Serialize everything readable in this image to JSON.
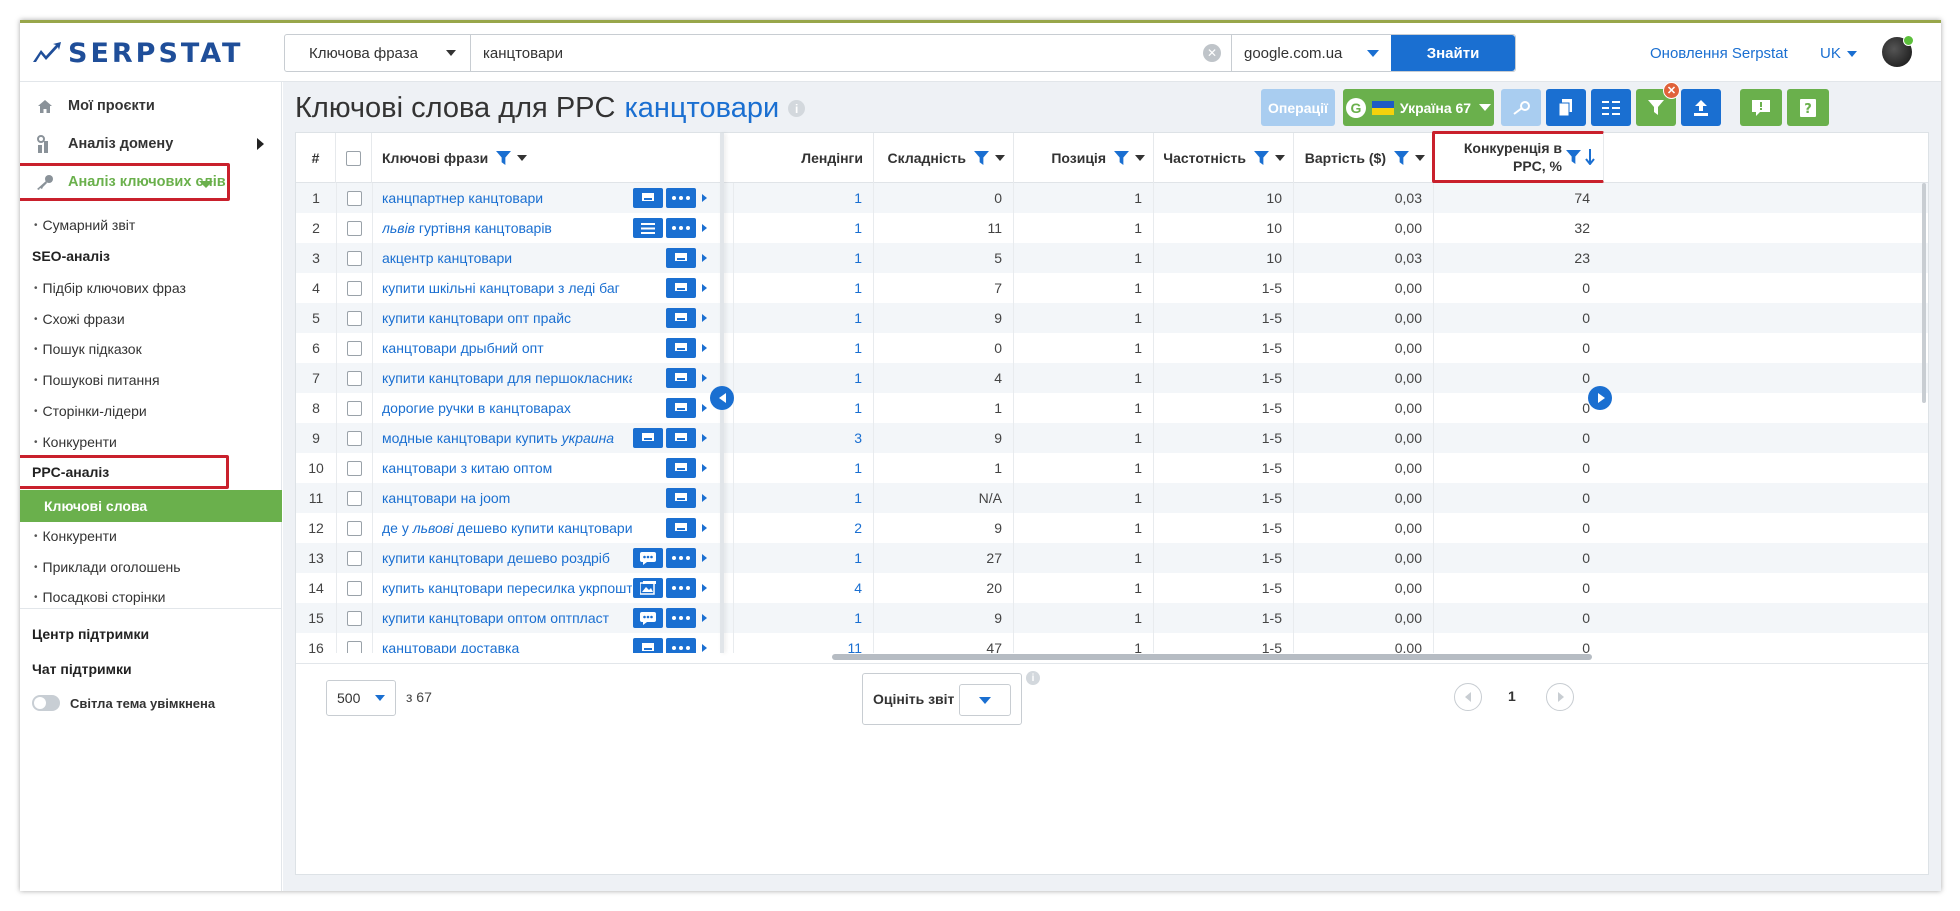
{
  "header": {
    "logo_text": "SERPSTAT",
    "search_type": "Ключова фраза",
    "search_query": "канцтовари",
    "search_db": "google.com.ua",
    "search_button": "Знайти",
    "updates_link": "Оновлення Serpstat",
    "lang": "UK"
  },
  "sidebar": {
    "my_projects": "Мої проєкти",
    "domain_analysis": "Аналіз домену",
    "keyword_analysis": "Аналіз ключових слів",
    "summary": "Сумарний звіт",
    "seo_head": "SEO-аналіз",
    "seo_items": [
      "Підбір ключових фраз",
      "Схожі фрази",
      "Пошук підказок",
      "Пошукові питання",
      "Сторінки-лідери",
      "Конкуренти"
    ],
    "ppc_head": "PPC-аналіз",
    "ppc_active": "Ключові слова",
    "ppc_items": [
      "Конкуренти",
      "Приклади оголошень",
      "Посадкові сторінки"
    ],
    "support_center": "Центр підтримки",
    "support_chat": "Чат підтримки",
    "theme_toggle": "Світла тема увімкнена"
  },
  "page": {
    "title_prefix": "Ключові слова для PPC",
    "title_keyword": "канцтовари",
    "operations_btn": "Операції",
    "region_btn": "Україна 67"
  },
  "table": {
    "headers": {
      "num": "#",
      "keywords": "Ключові фрази",
      "landings": "Лендінги",
      "difficulty": "Складність",
      "position": "Позиція",
      "frequency": "Частотність",
      "cost": "Вартість ($)",
      "competition": "Конкуренція в PPC, %"
    },
    "rows": [
      {
        "n": "1",
        "kw": [
          "канцпартнер канцтовари"
        ],
        "l": "1",
        "d": "0",
        "p": "1",
        "f": "10",
        "c": "0,03",
        "k": "74",
        "icons": [
          "ad",
          "dots"
        ]
      },
      {
        "n": "2",
        "kw": [
          "",
          "львів",
          " гуртівня канцтоварів"
        ],
        "l": "1",
        "d": "11",
        "p": "1",
        "f": "10",
        "c": "0,00",
        "k": "32",
        "icons": [
          "list",
          "dots"
        ]
      },
      {
        "n": "3",
        "kw": [
          "акцентр канцтовари"
        ],
        "l": "1",
        "d": "5",
        "p": "1",
        "f": "10",
        "c": "0,03",
        "k": "23",
        "icons": [
          "ad"
        ]
      },
      {
        "n": "4",
        "kw": [
          "купити шкільні канцтовари з леді баг"
        ],
        "l": "1",
        "d": "7",
        "p": "1",
        "f": "1-5",
        "c": "0,00",
        "k": "0",
        "icons": [
          "ad"
        ]
      },
      {
        "n": "5",
        "kw": [
          "купити канцтовари опт прайс"
        ],
        "l": "1",
        "d": "9",
        "p": "1",
        "f": "1-5",
        "c": "0,00",
        "k": "0",
        "icons": [
          "ad"
        ]
      },
      {
        "n": "6",
        "kw": [
          "канцтовари дрыбний опт"
        ],
        "l": "1",
        "d": "0",
        "p": "1",
        "f": "1-5",
        "c": "0,00",
        "k": "0",
        "icons": [
          "ad"
        ]
      },
      {
        "n": "7",
        "kw": [
          "купити канцтовари для першокласника"
        ],
        "l": "1",
        "d": "4",
        "p": "1",
        "f": "1-5",
        "c": "0,00",
        "k": "0",
        "icons": [
          "ad"
        ]
      },
      {
        "n": "8",
        "kw": [
          "дорогие ручки в канцтоварах"
        ],
        "l": "1",
        "d": "1",
        "p": "1",
        "f": "1-5",
        "c": "0,00",
        "k": "0",
        "icons": [
          "ad"
        ]
      },
      {
        "n": "9",
        "kw": [
          "модные канцтовари купить ",
          "украина",
          ""
        ],
        "l": "3",
        "d": "9",
        "p": "1",
        "f": "1-5",
        "c": "0,00",
        "k": "0",
        "icons": [
          "ad",
          "ad"
        ]
      },
      {
        "n": "10",
        "kw": [
          "канцтовари з китаю оптом"
        ],
        "l": "1",
        "d": "1",
        "p": "1",
        "f": "1-5",
        "c": "0,00",
        "k": "0",
        "icons": [
          "ad"
        ]
      },
      {
        "n": "11",
        "kw": [
          "канцтовари на joom"
        ],
        "l": "1",
        "d": "N/A",
        "p": "1",
        "f": "1-5",
        "c": "0,00",
        "k": "0",
        "icons": [
          "ad"
        ]
      },
      {
        "n": "12",
        "kw": [
          "де у ",
          "львові",
          " дешево купити канцтовари"
        ],
        "l": "2",
        "d": "9",
        "p": "1",
        "f": "1-5",
        "c": "0,00",
        "k": "0",
        "icons": [
          "ad"
        ]
      },
      {
        "n": "13",
        "kw": [
          "купити канцтовари дешево роздріб"
        ],
        "l": "1",
        "d": "27",
        "p": "1",
        "f": "1-5",
        "c": "0,00",
        "k": "0",
        "icons": [
          "chat",
          "dots"
        ]
      },
      {
        "n": "14",
        "kw": [
          "купить канцтовари пересилка укрпоштою"
        ],
        "l": "4",
        "d": "20",
        "p": "1",
        "f": "1-5",
        "c": "0,00",
        "k": "0",
        "icons": [
          "img",
          "dots"
        ]
      },
      {
        "n": "15",
        "kw": [
          "купити канцтовари оптом оптпласт"
        ],
        "l": "1",
        "d": "9",
        "p": "1",
        "f": "1-5",
        "c": "0,00",
        "k": "0",
        "icons": [
          "chat",
          "dots"
        ]
      },
      {
        "n": "16",
        "kw": [
          "канцтовари доставка"
        ],
        "l": "11",
        "d": "47",
        "p": "1",
        "f": "1-5",
        "c": "0,00",
        "k": "0",
        "icons": [
          "ad",
          "dots"
        ]
      }
    ]
  },
  "footer": {
    "page_size": "500",
    "of_total": "з 67",
    "rate_label": "Оцініть звіт",
    "current_page": "1"
  },
  "colors": {
    "accent": "#1a6fd1",
    "green": "#6ab04c",
    "highlight": "#c9202c"
  }
}
